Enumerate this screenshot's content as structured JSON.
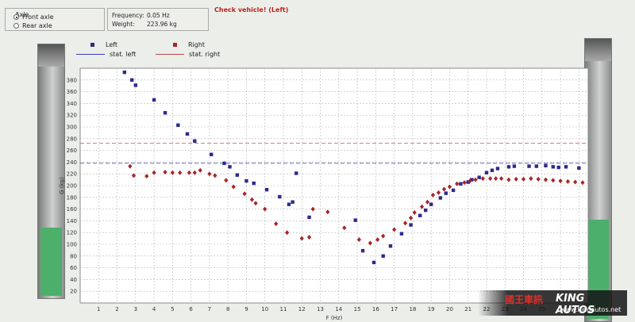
{
  "axle": {
    "legend": "Axle",
    "options": [
      {
        "label": "Front axle",
        "selected": true
      },
      {
        "label": "Rear axle",
        "selected": false
      }
    ]
  },
  "info": {
    "frequency_label": "Frequency:",
    "frequency_value": "0.05 Hz",
    "weight_label": "Weight:",
    "weight_value": "223.96 kg"
  },
  "warning": "Check vehicle! (Left)",
  "gauges": {
    "left_level": 0.27,
    "right_level": 0.35,
    "fill_color": "#4caf6a"
  },
  "legend": {
    "left": "Left",
    "right": "Right",
    "stat_left": "stat. left",
    "stat_right": "stat. right"
  },
  "watermark": {
    "chinese": "國王車訊",
    "english": "KING AUTOS",
    "url": "www.kingautos.net"
  },
  "chart_data": {
    "type": "scatter",
    "xlabel": "F (Hz)",
    "ylabel": "G (kg)",
    "xlim": [
      0,
      27.5
    ],
    "ylim": [
      0,
      400
    ],
    "x_ticks": [
      1,
      2,
      3,
      4,
      5,
      6,
      7,
      8,
      9,
      10,
      11,
      12,
      13,
      14,
      15,
      16,
      17,
      18,
      19,
      20,
      21,
      22,
      23,
      24,
      25,
      26,
      27
    ],
    "y_ticks": [
      20,
      40,
      60,
      80,
      100,
      120,
      140,
      160,
      180,
      200,
      220,
      240,
      260,
      280,
      300,
      320,
      340,
      360,
      380
    ],
    "grid": true,
    "stat_left": 238,
    "stat_right": 272,
    "series": [
      {
        "name": "Left",
        "color": "#2d2a8c",
        "marker": "square",
        "points": [
          [
            2.4,
            393
          ],
          [
            2.8,
            380
          ],
          [
            3.0,
            371
          ],
          [
            4.0,
            346
          ],
          [
            4.6,
            324
          ],
          [
            5.3,
            303
          ],
          [
            5.8,
            288
          ],
          [
            6.2,
            276
          ],
          [
            7.1,
            253
          ],
          [
            7.8,
            238
          ],
          [
            8.1,
            232
          ],
          [
            8.5,
            218
          ],
          [
            9.0,
            208
          ],
          [
            9.4,
            204
          ],
          [
            10.1,
            193
          ],
          [
            10.8,
            181
          ],
          [
            11.3,
            168
          ],
          [
            11.5,
            172
          ],
          [
            11.7,
            221
          ],
          [
            12.4,
            146
          ],
          [
            14.9,
            141
          ],
          [
            15.3,
            89
          ],
          [
            15.9,
            69
          ],
          [
            16.4,
            80
          ],
          [
            16.8,
            97
          ],
          [
            17.4,
            118
          ],
          [
            17.9,
            133
          ],
          [
            18.4,
            149
          ],
          [
            18.7,
            158
          ],
          [
            19.0,
            168
          ],
          [
            19.5,
            179
          ],
          [
            19.8,
            187
          ],
          [
            20.2,
            192
          ],
          [
            20.6,
            203
          ],
          [
            21.0,
            206
          ],
          [
            21.2,
            210
          ],
          [
            21.6,
            214
          ],
          [
            22.0,
            222
          ],
          [
            22.3,
            226
          ],
          [
            22.6,
            229
          ],
          [
            23.2,
            232
          ],
          [
            23.5,
            233
          ],
          [
            24.3,
            233
          ],
          [
            24.7,
            233
          ],
          [
            25.2,
            234
          ],
          [
            25.6,
            232
          ],
          [
            25.9,
            231
          ],
          [
            26.3,
            232
          ],
          [
            27.0,
            230
          ]
        ]
      },
      {
        "name": "Right",
        "color": "#a6262a",
        "marker": "diamond",
        "points": [
          [
            2.7,
            233
          ],
          [
            2.9,
            217
          ],
          [
            3.6,
            216
          ],
          [
            4.0,
            222
          ],
          [
            4.6,
            223
          ],
          [
            5.0,
            222
          ],
          [
            5.4,
            222
          ],
          [
            5.9,
            222
          ],
          [
            6.2,
            222
          ],
          [
            6.5,
            226
          ],
          [
            7.0,
            220
          ],
          [
            7.3,
            217
          ],
          [
            7.9,
            209
          ],
          [
            8.3,
            198
          ],
          [
            8.9,
            186
          ],
          [
            9.3,
            176
          ],
          [
            9.5,
            170
          ],
          [
            10.0,
            160
          ],
          [
            10.6,
            135
          ],
          [
            11.2,
            120
          ],
          [
            12.0,
            110
          ],
          [
            12.4,
            112
          ],
          [
            12.6,
            160
          ],
          [
            13.4,
            155
          ],
          [
            14.3,
            128
          ],
          [
            15.1,
            108
          ],
          [
            15.7,
            102
          ],
          [
            16.1,
            108
          ],
          [
            16.4,
            114
          ],
          [
            17.0,
            125
          ],
          [
            17.6,
            136
          ],
          [
            17.9,
            145
          ],
          [
            18.1,
            154
          ],
          [
            18.5,
            164
          ],
          [
            18.8,
            172
          ],
          [
            19.1,
            184
          ],
          [
            19.4,
            188
          ],
          [
            19.7,
            194
          ],
          [
            20.0,
            198
          ],
          [
            20.4,
            203
          ],
          [
            20.8,
            205
          ],
          [
            21.1,
            208
          ],
          [
            21.4,
            210
          ],
          [
            21.8,
            212
          ],
          [
            22.2,
            212
          ],
          [
            22.5,
            212
          ],
          [
            22.8,
            212
          ],
          [
            23.2,
            210
          ],
          [
            23.6,
            211
          ],
          [
            24.0,
            211
          ],
          [
            24.4,
            212
          ],
          [
            24.8,
            211
          ],
          [
            25.2,
            210
          ],
          [
            25.6,
            209
          ],
          [
            26.0,
            208
          ],
          [
            26.4,
            207
          ],
          [
            26.8,
            206
          ],
          [
            27.2,
            205
          ]
        ]
      }
    ]
  }
}
